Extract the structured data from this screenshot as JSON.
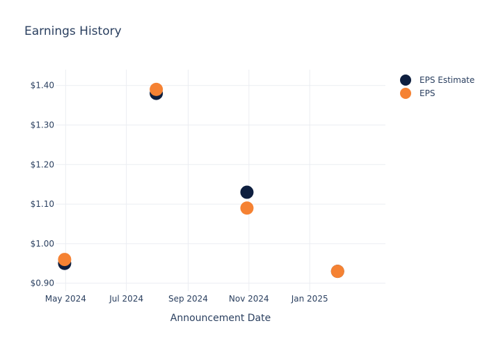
{
  "chart_data": {
    "type": "scatter",
    "title": "Earnings History",
    "xlabel": "Announcement Date",
    "ylabel": "",
    "x_tick_labels": [
      "May 2024",
      "Jul 2024",
      "Sep 2024",
      "Nov 2024",
      "Jan 2025"
    ],
    "x_tick_dates": [
      "2024-05-01",
      "2024-07-01",
      "2024-09-01",
      "2024-11-01",
      "2025-01-01"
    ],
    "xlim": [
      "2024-04-21",
      "2025-03-18"
    ],
    "y_tick_labels": [
      "$0.90",
      "$1.00",
      "$1.10",
      "$1.20",
      "$1.30",
      "$1.40"
    ],
    "y_tick_values": [
      0.9,
      1.0,
      1.1,
      1.2,
      1.3,
      1.4
    ],
    "ylim": [
      0.88,
      1.44
    ],
    "grid": true,
    "legend_position": "top-right",
    "x": [
      "2024-04-30",
      "2024-07-31",
      "2024-10-30",
      "2025-01-29"
    ],
    "series": [
      {
        "name": "EPS Estimate",
        "color": "#0e1f3f",
        "values": [
          0.95,
          1.38,
          1.13,
          0.93
        ]
      },
      {
        "name": "EPS",
        "color": "#f58233",
        "values": [
          0.96,
          1.39,
          1.09,
          0.93
        ]
      }
    ]
  }
}
